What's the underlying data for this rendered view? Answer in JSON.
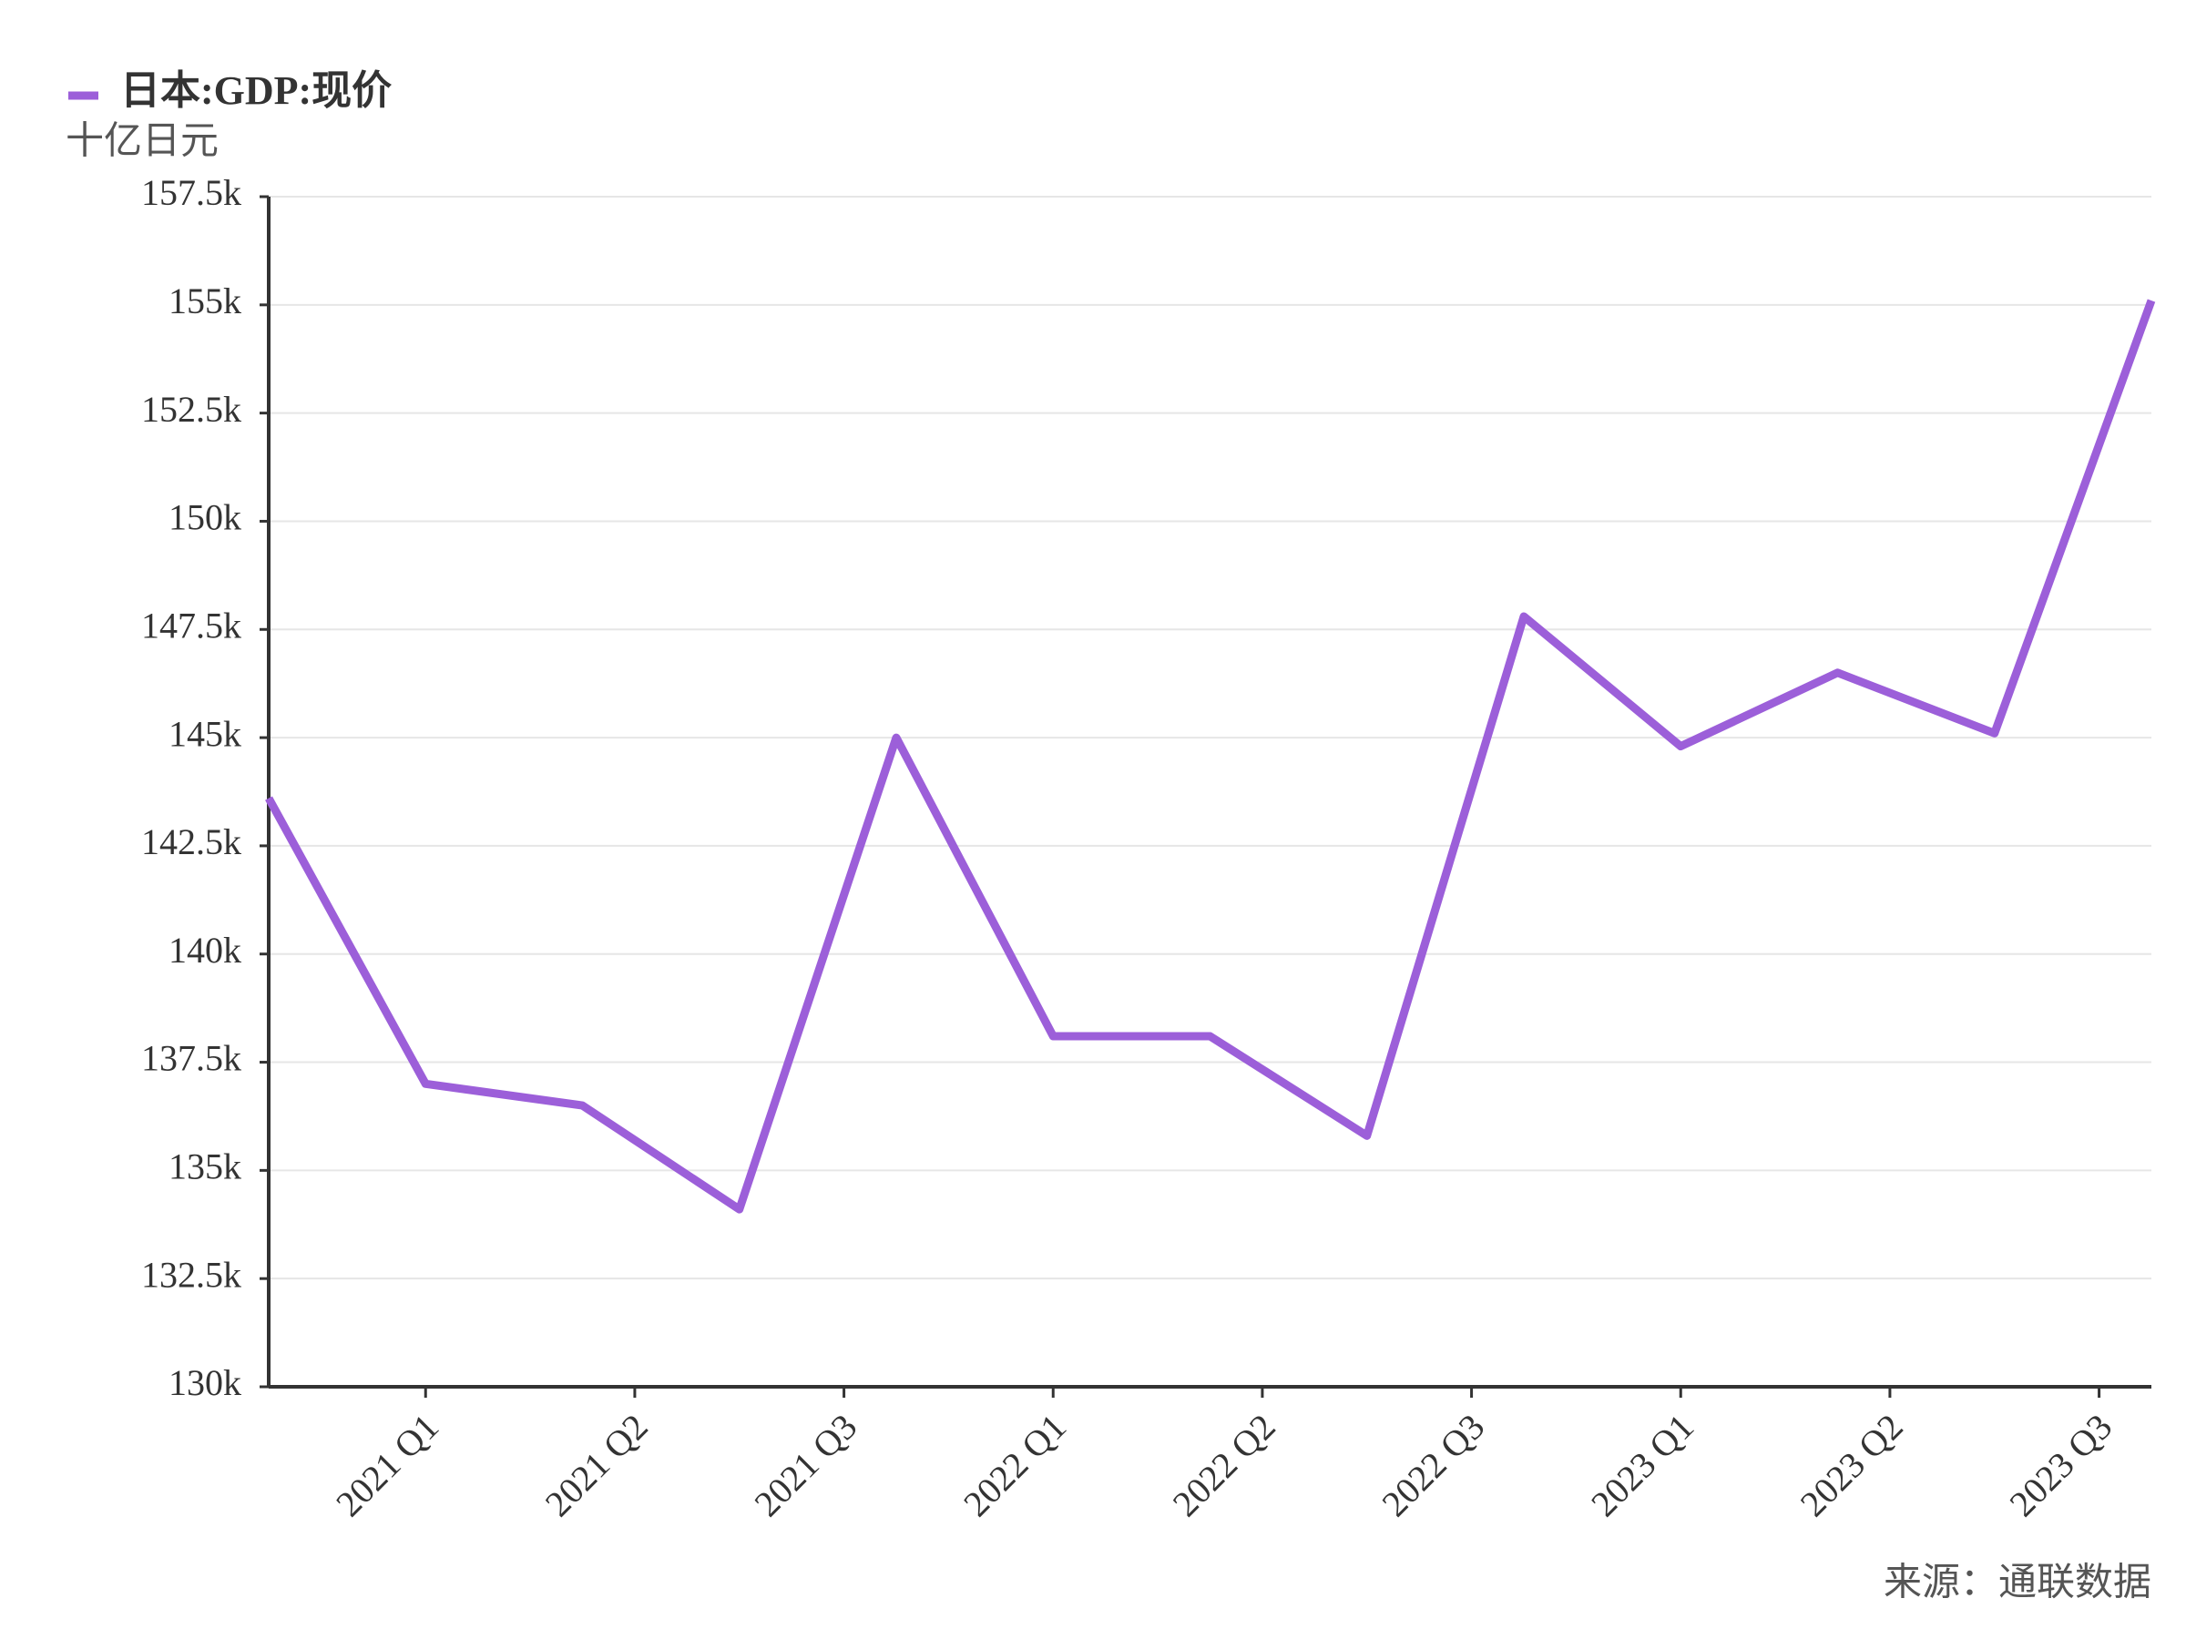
{
  "chart_data": {
    "type": "line",
    "y_axis_label": "十亿日元",
    "source": "来源：通联数据",
    "x": [
      0,
      3,
      6,
      9,
      12,
      15,
      18,
      21,
      24,
      27,
      30,
      33,
      36
    ],
    "xlim": [
      0,
      36
    ],
    "xticks": [
      {
        "value": 3,
        "label": "2021 Q1"
      },
      {
        "value": 7,
        "label": "2021 Q2"
      },
      {
        "value": 11,
        "label": "2021 Q3"
      },
      {
        "value": 15,
        "label": "2022 Q1"
      },
      {
        "value": 19,
        "label": "2022 Q2"
      },
      {
        "value": 23,
        "label": "2022 Q3"
      },
      {
        "value": 27,
        "label": "2023 Q1"
      },
      {
        "value": 31,
        "label": "2023 Q2"
      },
      {
        "value": 35,
        "label": "2023 Q3"
      }
    ],
    "series": [
      {
        "name": "日本:GDP:现价",
        "color": "#9c5fd9",
        "values": [
          143600,
          137000,
          136500,
          134100,
          145000,
          138100,
          138100,
          135800,
          147800,
          144800,
          146500,
          145100,
          155100
        ]
      }
    ],
    "ylim": [
      130000,
      157500
    ],
    "yticks": [
      {
        "value": 130000,
        "label": "130k"
      },
      {
        "value": 132500,
        "label": "132.5k"
      },
      {
        "value": 135000,
        "label": "135k"
      },
      {
        "value": 137500,
        "label": "137.5k"
      },
      {
        "value": 140000,
        "label": "140k"
      },
      {
        "value": 142500,
        "label": "142.5k"
      },
      {
        "value": 145000,
        "label": "145k"
      },
      {
        "value": 147500,
        "label": "147.5k"
      },
      {
        "value": 150000,
        "label": "150k"
      },
      {
        "value": 152500,
        "label": "152.5k"
      },
      {
        "value": 155000,
        "label": "155k"
      },
      {
        "value": 157500,
        "label": "157.5k"
      }
    ],
    "grid": true
  }
}
